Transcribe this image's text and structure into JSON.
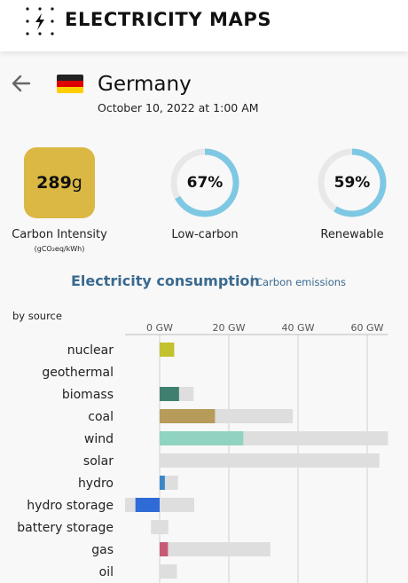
{
  "header": {
    "brand": "ELECTRICITY MAPS",
    "logo_icon": "lightning-dots-icon"
  },
  "zone": {
    "name": "Germany",
    "datetime": "October 10, 2022 at 1:00 AM",
    "flag_colors": [
      "#222222",
      "#dd0000",
      "#ffce00"
    ],
    "back_icon": "arrow-left-icon"
  },
  "metrics": {
    "carbon_intensity": {
      "value": "289",
      "unit": "g",
      "label": "Carbon Intensity",
      "sublabel": "(gCO₂eq/kWh)",
      "color": "#dbb843"
    },
    "low_carbon": {
      "value": "67%",
      "label": "Low-carbon",
      "fraction": 0.67
    },
    "renewable": {
      "value": "59%",
      "label": "Renewable",
      "fraction": 0.59
    },
    "ring_color": "#7ec8e3",
    "ring_track_color": "#e8e8e8"
  },
  "section": {
    "title": "Electricity consumption",
    "separator": "|",
    "alt_title": "Carbon emissions",
    "by_source": "by source"
  },
  "chart_data": {
    "type": "bar",
    "orientation": "horizontal",
    "xlabel": "",
    "ylabel": "",
    "x_ticks": [
      "0 GW",
      "20 GW",
      "40 GW",
      "60 GW"
    ],
    "x_tick_values": [
      0,
      20,
      40,
      60
    ],
    "xlim": [
      -10,
      66
    ],
    "categories": [
      "nuclear",
      "geothermal",
      "biomass",
      "coal",
      "wind",
      "solar",
      "hydro",
      "hydro storage",
      "battery storage",
      "gas",
      "oil"
    ],
    "series": [
      {
        "role": "production",
        "values": [
          4.2,
          0,
          5.6,
          16,
          24.2,
          0,
          1.5,
          -7,
          0,
          2.4,
          0
        ],
        "colors": [
          "#c3c12f",
          "#9c4f22",
          "#3f7f70",
          "#b79b5a",
          "#8fd3c0",
          "#f5b400",
          "#3a86c8",
          "#2e6bd6",
          "#9b59b6",
          "#c65b75",
          "#795548"
        ]
      },
      {
        "role": "capacity",
        "values": [
          4.2,
          0,
          9.8,
          38.5,
          66,
          63.5,
          5.3,
          10,
          2.5,
          32,
          5
        ],
        "capacity_min": [
          0,
          0,
          0,
          0,
          0,
          0,
          0,
          -10,
          -2.5,
          0,
          0
        ],
        "color": "#dedede"
      }
    ],
    "grid": true
  }
}
